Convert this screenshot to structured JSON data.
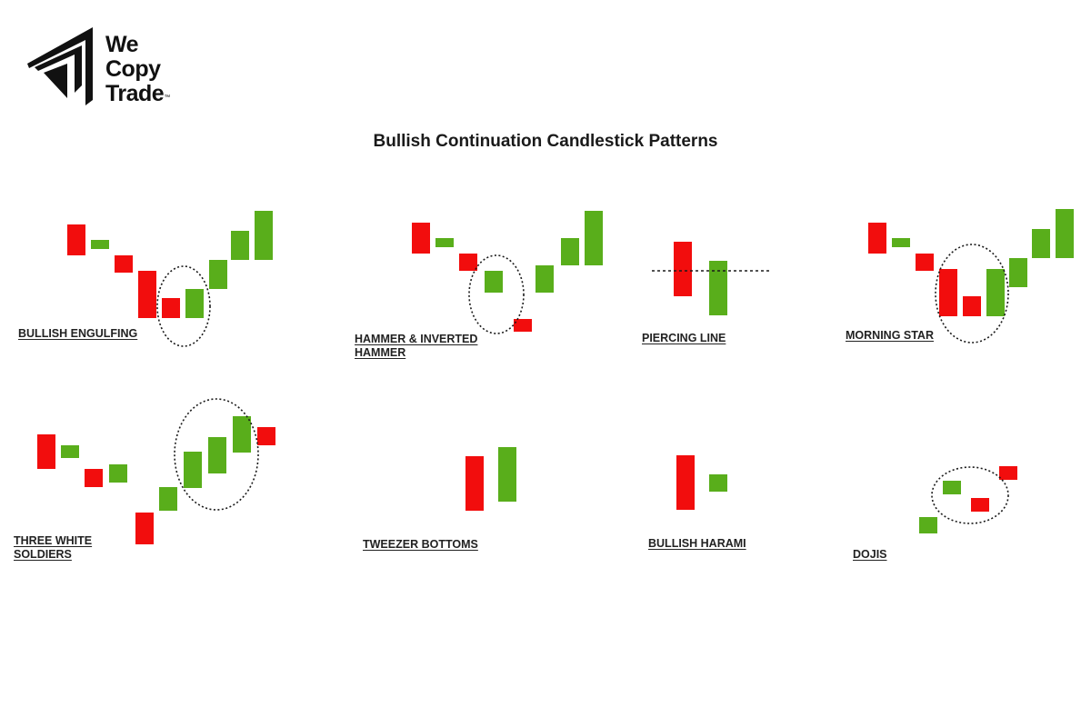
{
  "brand": {
    "name_line1": "We",
    "name_line2": "Copy",
    "name_line3": "Trade",
    "trademark": "™",
    "logo_icon": "triangle-arrow-logo-icon"
  },
  "title": "Bullish Continuation Candlestick Patterns",
  "colors": {
    "bullish": "#59ae1b",
    "bearish": "#f20d0d",
    "outline": "#1a1a1a",
    "text": "#222222"
  },
  "patterns": [
    {
      "id": "bullish-engulfing",
      "label": "BULLISH ENGULFING"
    },
    {
      "id": "hammer",
      "label": "HAMMER & INVERTED\nHAMMER"
    },
    {
      "id": "piercing-line",
      "label": "PIERCING LINE"
    },
    {
      "id": "morning-star",
      "label": "MORNING STAR"
    },
    {
      "id": "three-white-soldiers",
      "label": "THREE WHITE\nSOLDIERS"
    },
    {
      "id": "tweezer-bottoms",
      "label": "TWEEZER BOTTOMS"
    },
    {
      "id": "bullish-harami",
      "label": "BULLISH HARAMI"
    },
    {
      "id": "dojis",
      "label": "DOJIS"
    }
  ]
}
